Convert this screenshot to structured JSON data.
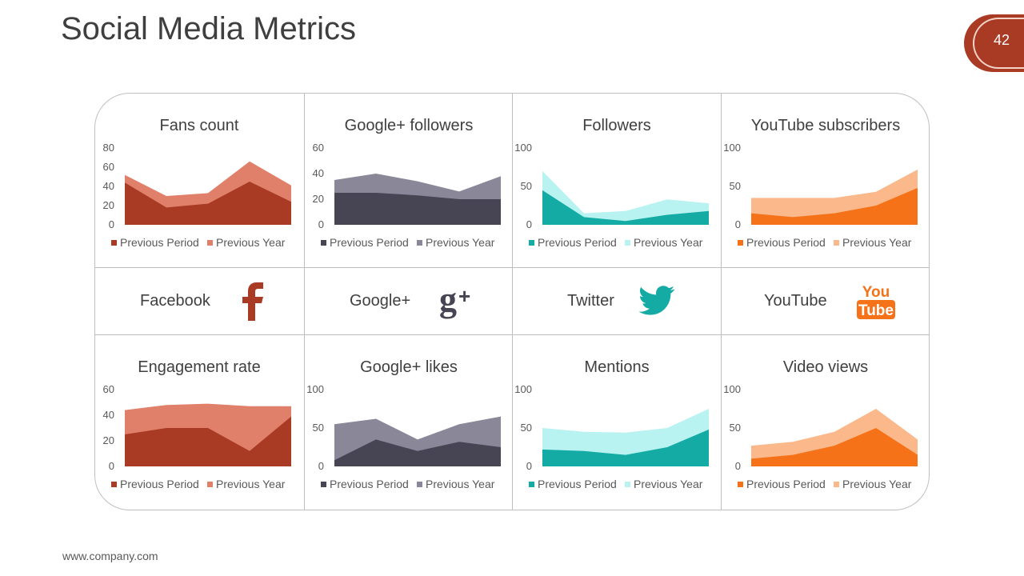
{
  "slide": {
    "title": "Social Media Metrics",
    "page_number": "42",
    "footer": "www.company.com"
  },
  "colors": {
    "frame": "#bfbfbf",
    "badge": "#a93a24",
    "facebook_dark": "#a93a24",
    "facebook_light": "#e0806a",
    "google_dark": "#474554",
    "google_light": "#8a8798",
    "twitter_dark": "#14aba4",
    "twitter_light": "#b8f3f2",
    "youtube_dark": "#f57219",
    "youtube_light": "#fbb98b"
  },
  "social": [
    {
      "label": "Facebook",
      "icon": "facebook-icon"
    },
    {
      "label": "Google+",
      "icon": "google-plus-icon"
    },
    {
      "label": "Twitter",
      "icon": "twitter-bird-icon"
    },
    {
      "label": "YouTube",
      "icon": "youtube-icon",
      "icon_text_top": "You",
      "icon_text_bottom": "Tube"
    }
  ],
  "chart_data": [
    {
      "type": "area",
      "title": "Fans count",
      "theme": "facebook",
      "ylim": [
        0,
        80
      ],
      "yticks": [
        "0",
        "20",
        "40",
        "60",
        "80"
      ],
      "series": [
        {
          "name": "Previous Period",
          "values": [
            44,
            18,
            22,
            45,
            24
          ]
        },
        {
          "name": "Previous Year",
          "values": [
            52,
            30,
            33,
            66,
            41
          ]
        }
      ]
    },
    {
      "type": "area",
      "title": "Google+ followers",
      "theme": "google",
      "ylim": [
        0,
        60
      ],
      "yticks": [
        "0",
        "20",
        "40",
        "60"
      ],
      "series": [
        {
          "name": "Previous Period",
          "values": [
            25,
            25,
            23,
            20,
            20
          ]
        },
        {
          "name": "Previous Year",
          "values": [
            35,
            40,
            34,
            26,
            38
          ]
        }
      ]
    },
    {
      "type": "area",
      "title": "Followers",
      "theme": "twitter",
      "ylim": [
        0,
        100
      ],
      "yticks": [
        "0",
        "50",
        "100"
      ],
      "series": [
        {
          "name": "Previous Period",
          "values": [
            45,
            10,
            5,
            13,
            18
          ]
        },
        {
          "name": "Previous Year",
          "values": [
            70,
            15,
            18,
            33,
            28
          ]
        }
      ]
    },
    {
      "type": "area",
      "title": "YouTube  subscribers",
      "theme": "youtube",
      "ylim": [
        0,
        100
      ],
      "yticks": [
        "0",
        "50",
        "100"
      ],
      "series": [
        {
          "name": "Previous Period",
          "values": [
            15,
            10,
            15,
            25,
            48
          ]
        },
        {
          "name": "Previous Year",
          "values": [
            35,
            35,
            35,
            43,
            72
          ]
        }
      ]
    },
    {
      "type": "area",
      "title": "Engagement  rate",
      "theme": "facebook",
      "ylim": [
        0,
        60
      ],
      "yticks": [
        "0",
        "20",
        "40",
        "60"
      ],
      "series": [
        {
          "name": "Previous Period",
          "values": [
            25,
            30,
            30,
            12,
            39
          ]
        },
        {
          "name": "Previous Year",
          "values": [
            44,
            48,
            49,
            47,
            47
          ]
        }
      ]
    },
    {
      "type": "area",
      "title": "Google+ likes",
      "theme": "google",
      "ylim": [
        0,
        100
      ],
      "yticks": [
        "0",
        "50",
        "100"
      ],
      "series": [
        {
          "name": "Previous Period",
          "values": [
            8,
            35,
            20,
            32,
            25
          ]
        },
        {
          "name": "Previous Year",
          "values": [
            55,
            62,
            35,
            55,
            65
          ]
        }
      ]
    },
    {
      "type": "area",
      "title": "Mentions",
      "theme": "twitter",
      "ylim": [
        0,
        100
      ],
      "yticks": [
        "0",
        "50",
        "100"
      ],
      "series": [
        {
          "name": "Previous Period",
          "values": [
            22,
            20,
            15,
            25,
            48
          ]
        },
        {
          "name": "Previous Year",
          "values": [
            50,
            45,
            44,
            50,
            75
          ]
        }
      ]
    },
    {
      "type": "area",
      "title": "Video views",
      "theme": "youtube",
      "ylim": [
        0,
        100
      ],
      "yticks": [
        "0",
        "50",
        "100"
      ],
      "series": [
        {
          "name": "Previous Period",
          "values": [
            10,
            15,
            27,
            50,
            15
          ]
        },
        {
          "name": "Previous Year",
          "values": [
            27,
            32,
            45,
            75,
            35
          ]
        }
      ]
    }
  ]
}
